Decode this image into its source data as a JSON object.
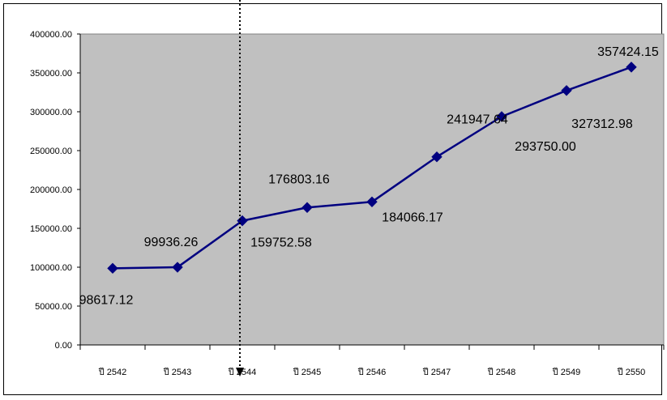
{
  "chart_data": {
    "type": "line",
    "categories": [
      "ปี 2542",
      "ปี 2543",
      "ปี 2544",
      "ปี 2545",
      "ปี 2546",
      "ปี 2547",
      "ปี 2548",
      "ปี 2549",
      "ปี 2550"
    ],
    "series": [
      {
        "values": [
          98617.12,
          99936.26,
          159752.58,
          176803.16,
          184066.17,
          241947.64,
          293750.0,
          327312.98,
          357424.15
        ],
        "data_labels": [
          "98617.12",
          "99936.26",
          "159752.58",
          "176803.16",
          "184066.17",
          "241947.64",
          "293750.00",
          "327312.98",
          "357424.15"
        ]
      }
    ],
    "y_ticks": [
      "0.00",
      "50000.00",
      "100000.00",
      "150000.00",
      "200000.00",
      "250000.00",
      "300000.00",
      "350000.00",
      "400000.00"
    ],
    "ylim": [
      0,
      400000
    ],
    "title": "",
    "xlabel": "",
    "ylabel": "",
    "grid": false,
    "legend": "none",
    "marker": "diamond",
    "colors": {
      "line": "#000080",
      "plot_background": "#c0c0c0",
      "marker_line": "#000000"
    }
  }
}
